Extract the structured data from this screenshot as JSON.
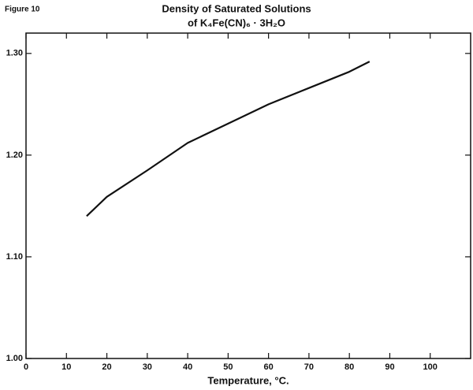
{
  "chart_data": {
    "type": "line",
    "figure_label": "Figure 10",
    "title": "Density of Saturated Solutions",
    "subtitle": "of K₄Fe(CN)₆ · 3H₂O",
    "x_label": "Temperature, °C.",
    "series": [
      {
        "color": "#111111",
        "x": [
          15,
          20,
          30,
          40,
          50,
          60,
          70,
          80,
          85
        ],
        "values": [
          1.14,
          1.159,
          1.185,
          1.212,
          1.231,
          1.25,
          1.266,
          1.282,
          1.292
        ]
      }
    ],
    "xlim": [
      0,
      110
    ],
    "xticks": [
      0,
      10,
      20,
      30,
      40,
      50,
      60,
      70,
      80,
      90,
      100
    ],
    "ylim": [
      1.0,
      1.32
    ],
    "yticks": [
      {
        "value": 1.0,
        "label": "1.00"
      },
      {
        "value": 1.1,
        "label": "1.10"
      },
      {
        "value": 1.2,
        "label": "1.20"
      },
      {
        "value": 1.3,
        "label": "1.30"
      }
    ]
  }
}
